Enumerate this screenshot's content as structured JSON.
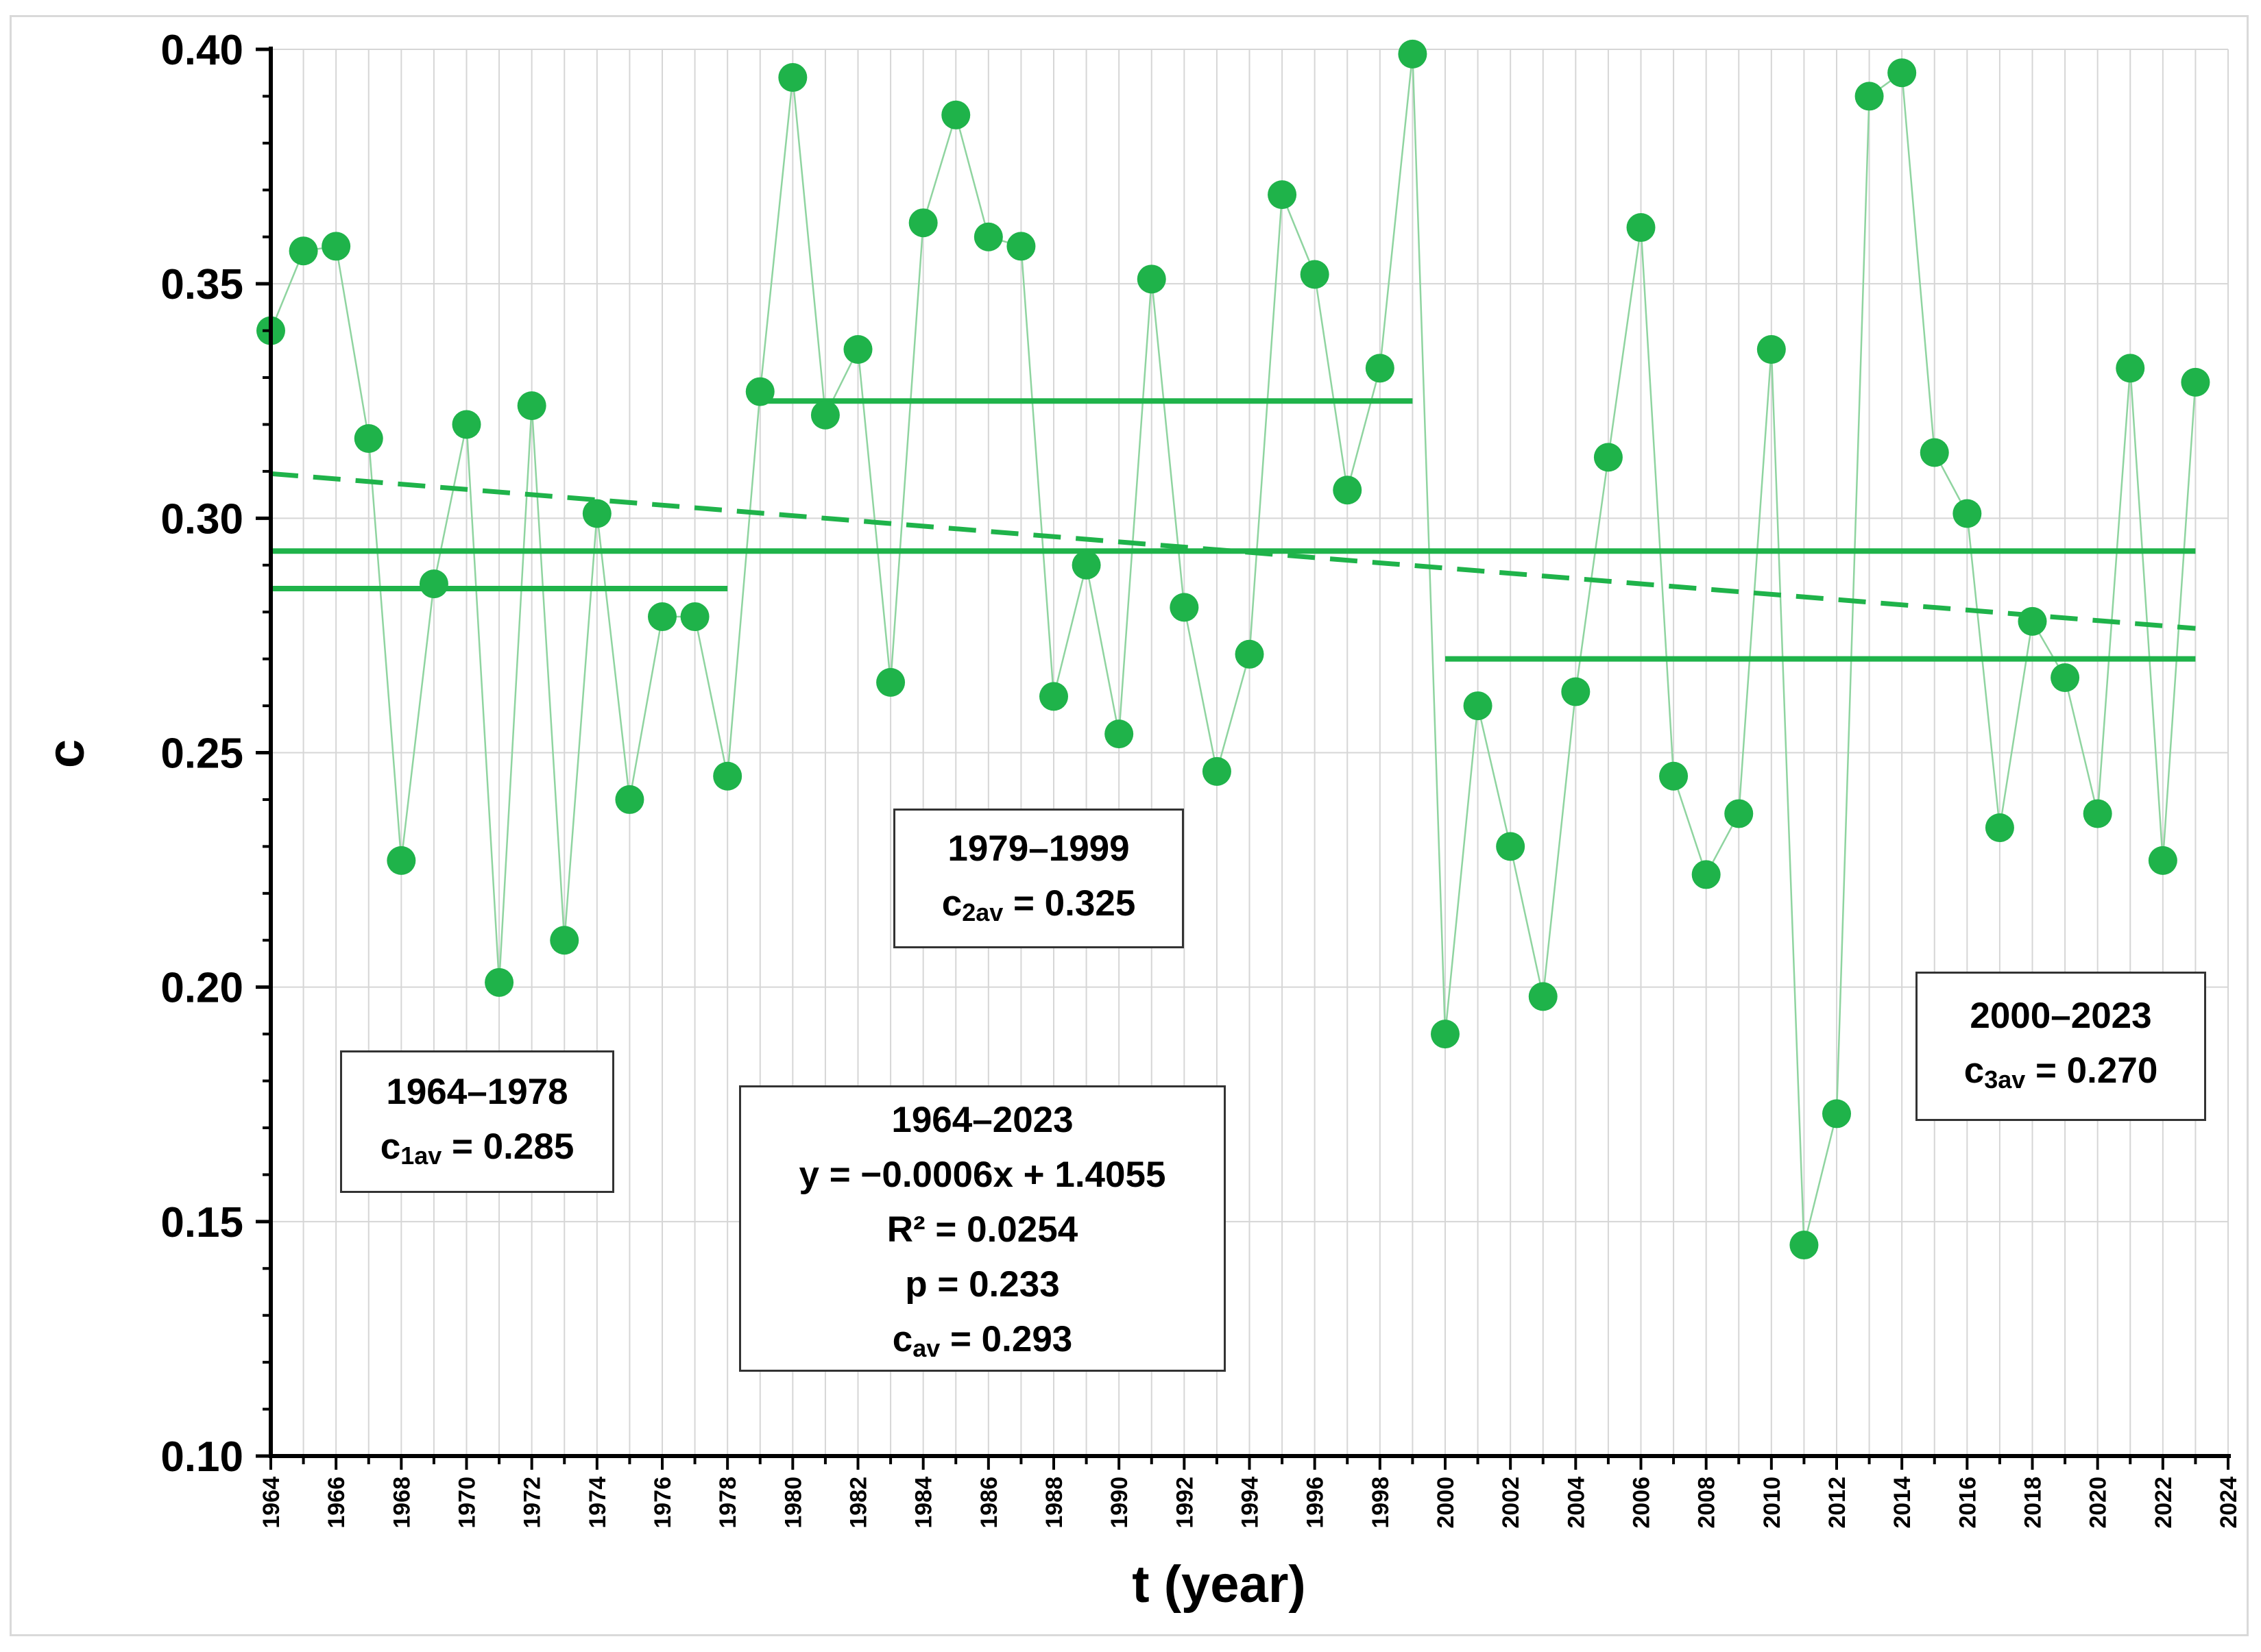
{
  "chart_data": {
    "type": "scatter",
    "title": "",
    "xlabel": "t (year)",
    "ylabel": "c",
    "xlim": [
      1964,
      2024
    ],
    "ylim": [
      0.1,
      0.4
    ],
    "yticks": [
      "0.10",
      "0.15",
      "0.20",
      "0.25",
      "0.30",
      "0.35",
      "0.40"
    ],
    "xticks": [
      "1964",
      "1966",
      "1968",
      "1970",
      "1972",
      "1974",
      "1976",
      "1978",
      "1980",
      "1982",
      "1984",
      "1986",
      "1988",
      "1990",
      "1992",
      "1994",
      "1996",
      "1998",
      "2000",
      "2002",
      "2004",
      "2006",
      "2008",
      "2010",
      "2012",
      "2014",
      "2016",
      "2018",
      "2020",
      "2022",
      "2024"
    ],
    "grid": true,
    "colors": {
      "series": "#1fb34a",
      "connector": "#8fd4a0",
      "grid": "#d6d6d6"
    },
    "series": [
      {
        "name": "c",
        "x": [
          1964,
          1965,
          1966,
          1967,
          1968,
          1969,
          1970,
          1971,
          1972,
          1973,
          1974,
          1975,
          1976,
          1977,
          1978,
          1979,
          1980,
          1981,
          1982,
          1983,
          1984,
          1985,
          1986,
          1987,
          1988,
          1989,
          1990,
          1991,
          1992,
          1993,
          1994,
          1995,
          1996,
          1997,
          1998,
          1999,
          2000,
          2001,
          2002,
          2003,
          2004,
          2005,
          2006,
          2007,
          2008,
          2009,
          2010,
          2011,
          2012,
          2013,
          2014,
          2015,
          2016,
          2017,
          2018,
          2019,
          2020,
          2021,
          2022,
          2023
        ],
        "y": [
          0.34,
          0.357,
          0.358,
          0.317,
          0.227,
          0.286,
          0.32,
          0.201,
          0.324,
          0.21,
          0.301,
          0.24,
          0.279,
          0.279,
          0.245,
          0.327,
          0.394,
          0.322,
          0.336,
          0.265,
          0.363,
          0.386,
          0.36,
          0.358,
          0.262,
          0.29,
          0.254,
          0.351,
          0.281,
          0.246,
          0.271,
          0.369,
          0.352,
          0.306,
          0.332,
          0.399,
          0.19,
          0.26,
          0.23,
          0.198,
          0.263,
          0.313,
          0.362,
          0.245,
          0.224,
          0.237,
          0.336,
          0.145,
          0.173,
          0.39,
          0.395,
          0.314,
          0.301,
          0.234,
          0.278,
          0.266,
          0.237,
          0.332,
          0.227,
          0.329
        ]
      }
    ],
    "reference_lines": [
      {
        "name": "c_av",
        "x": [
          1964,
          2023
        ],
        "y": 0.293
      },
      {
        "name": "c1av",
        "x": [
          1964,
          1978
        ],
        "y": 0.285
      },
      {
        "name": "c2av",
        "x": [
          1979,
          1999
        ],
        "y": 0.325
      },
      {
        "name": "c3av",
        "x": [
          2000,
          2023
        ],
        "y": 0.27
      }
    ],
    "trend": {
      "label": "y = −0.0006x + 1.4055",
      "x": [
        1964,
        2023
      ],
      "y": [
        0.3095,
        0.2765
      ],
      "style": "dashed"
    },
    "annotations": {
      "period1": {
        "line1": "1964–1978",
        "symbol": "c",
        "sub": "1av",
        "value": " = 0.285"
      },
      "period2": {
        "line1": "1979–1999",
        "symbol": "c",
        "sub": "2av",
        "value": " = 0.325"
      },
      "period3": {
        "line1": "2000–2023",
        "symbol": "c",
        "sub": "3av",
        "value": " = 0.270"
      },
      "overall": {
        "line1": "1964–2023",
        "line2": "y = −0.0006x + 1.4055",
        "line3": "R² = 0.0254",
        "line4": "p = 0.233",
        "symbol": "c",
        "sub": "av",
        "value": " = 0.293"
      }
    }
  }
}
